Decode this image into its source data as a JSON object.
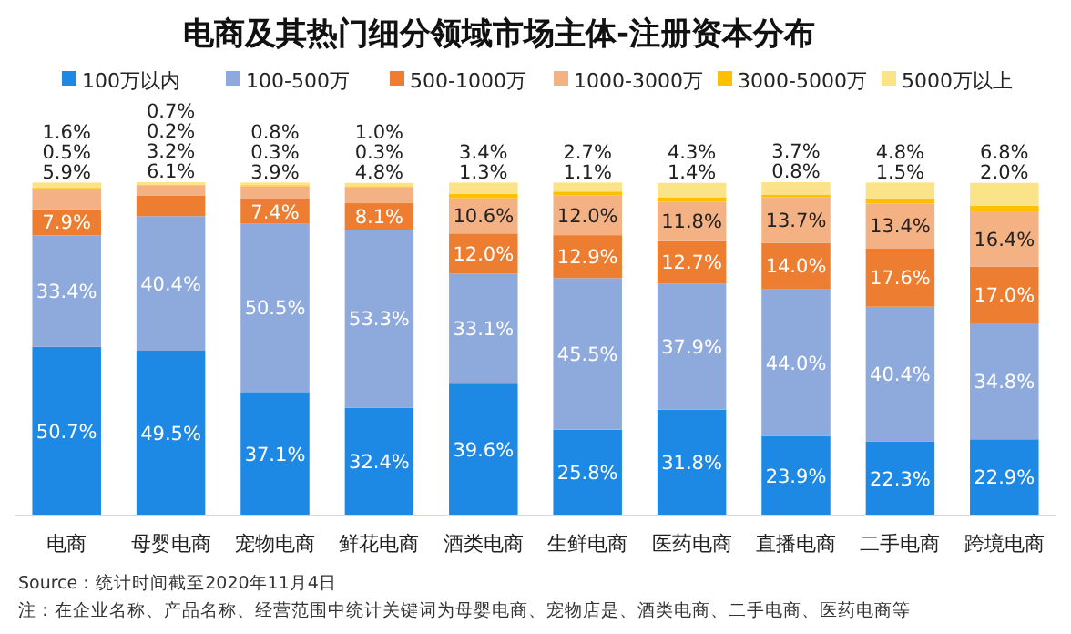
{
  "chart_data": {
    "type": "bar",
    "stacked": true,
    "legend": "top",
    "title": "电商及其热门细分领域市场主体-注册资本分布",
    "categories": [
      "电商",
      "母婴电商",
      "宠物电商",
      "鲜花电商",
      "酒类电商",
      "生鲜电商",
      "医药电商",
      "直播电商",
      "二手电商",
      "跨境电商"
    ],
    "series": [
      {
        "name": "100万以内",
        "color": "#1e88e5",
        "values": [
          50.7,
          49.5,
          37.1,
          32.4,
          39.6,
          25.8,
          31.8,
          23.9,
          22.3,
          22.9
        ],
        "value_labels": [
          "50.7%",
          "49.5%",
          "37.1%",
          "32.4%",
          "39.6%",
          "25.8%",
          "31.8%",
          "23.9%",
          "22.3%",
          "22.9%"
        ]
      },
      {
        "name": "100-500万",
        "color": "#8eaadc",
        "values": [
          33.4,
          40.4,
          50.5,
          53.3,
          33.1,
          45.5,
          37.9,
          44.0,
          40.4,
          34.8
        ],
        "value_labels": [
          "33.4%",
          "40.4%",
          "50.5%",
          "53.3%",
          "33.1%",
          "45.5%",
          "37.9%",
          "44.0%",
          "40.4%",
          "34.8%"
        ]
      },
      {
        "name": "500-1000万",
        "color": "#ed7d31",
        "values": [
          7.9,
          6.1,
          7.4,
          8.1,
          12.0,
          12.9,
          12.7,
          14.0,
          17.6,
          17.0
        ],
        "value_labels": [
          "7.9%",
          "6.1%",
          "7.4%",
          "8.1%",
          "12.0%",
          "12.9%",
          "12.7%",
          "14.0%",
          "17.6%",
          "17.0%"
        ]
      },
      {
        "name": "1000-3000万",
        "color": "#f4b183",
        "values": [
          5.9,
          3.2,
          3.9,
          4.8,
          10.6,
          12.0,
          11.8,
          13.7,
          13.4,
          16.4
        ],
        "value_labels": [
          "5.9%",
          "3.2%",
          "3.9%",
          "4.8%",
          "10.6%",
          "12.0%",
          "11.8%",
          "13.7%",
          "13.4%",
          "16.4%"
        ]
      },
      {
        "name": "3000-5000万",
        "color": "#ffc000",
        "values": [
          0.5,
          0.2,
          0.3,
          0.3,
          1.3,
          1.1,
          1.4,
          0.8,
          1.5,
          2.0
        ],
        "value_labels": [
          "0.5%",
          "0.2%",
          "0.3%",
          "0.3%",
          "1.3%",
          "1.1%",
          "1.4%",
          "0.8%",
          "1.5%",
          "2.0%"
        ]
      },
      {
        "name": "5000万以上",
        "color": "#fbe38a",
        "values": [
          1.6,
          0.7,
          0.8,
          1.0,
          3.4,
          2.7,
          4.3,
          3.7,
          4.8,
          6.8
        ],
        "value_labels": [
          "1.6%",
          "0.7%",
          "0.8%",
          "1.0%",
          "3.4%",
          "2.7%",
          "4.3%",
          "3.7%",
          "4.8%",
          "6.8%"
        ]
      }
    ],
    "annotations": [
      "Source：统计时间截至2020年11月4日",
      "注：在企业名称、产品名称、经营范围中统计关键词为母婴电商、宠物店是、酒类电商、二手电商、医药电商等"
    ]
  }
}
